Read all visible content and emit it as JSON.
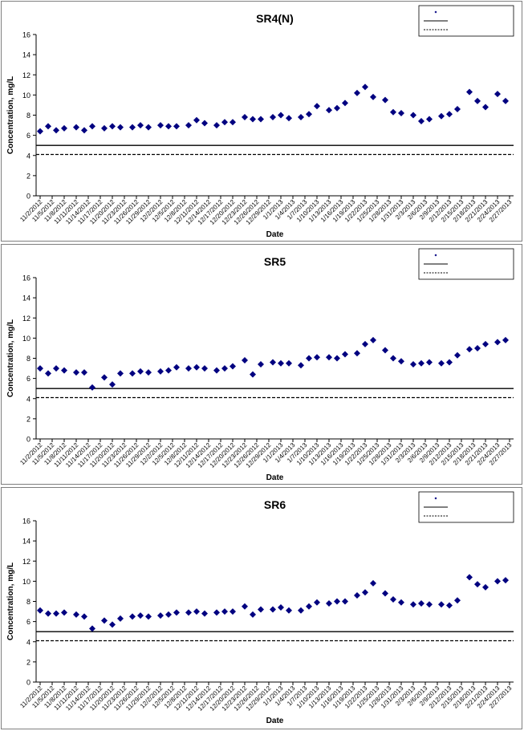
{
  "chart_data": [
    {
      "type": "scatter",
      "title": "SR4(N)",
      "xlabel": "Date",
      "ylabel": "Concentration, mg/L",
      "ylim": [
        0,
        16
      ],
      "ytick_step": 2,
      "grid": false,
      "legend_position": "top-right",
      "x_tick_labels": [
        "11/2/2012",
        "11/5/2012",
        "11/8/2012",
        "11/11/2012",
        "11/14/2012",
        "11/17/2012",
        "11/20/2012",
        "11/23/2012",
        "11/26/2012",
        "11/29/2012",
        "12/2/2012",
        "12/5/2012",
        "12/8/2012",
        "12/11/2012",
        "12/14/2012",
        "12/17/2012",
        "12/20/2012",
        "12/23/2012",
        "12/26/2012",
        "12/29/2012",
        "1/1/2013",
        "1/4/2013",
        "1/7/2013",
        "1/10/2013",
        "1/13/2013",
        "1/16/2013",
        "1/19/2013",
        "1/22/2013",
        "1/25/2013",
        "1/28/2013",
        "1/31/2013",
        "2/3/2013",
        "2/6/2013",
        "2/9/2013",
        "2/12/2013",
        "2/15/2013",
        "2/18/2013",
        "2/21/2013",
        "2/24/2013",
        "2/27/2013"
      ],
      "x": [
        "11/2/2012",
        "11/4/2012",
        "11/6/2012",
        "11/8/2012",
        "11/11/2012",
        "11/13/2012",
        "11/15/2012",
        "11/18/2012",
        "11/20/2012",
        "11/22/2012",
        "11/25/2012",
        "11/27/2012",
        "11/29/2012",
        "12/2/2012",
        "12/4/2012",
        "12/6/2012",
        "12/9/2012",
        "12/11/2012",
        "12/13/2012",
        "12/16/2012",
        "12/18/2012",
        "12/20/2012",
        "12/23/2012",
        "12/25/2012",
        "12/27/2012",
        "12/30/2012",
        "1/1/2013",
        "1/3/2013",
        "1/6/2013",
        "1/8/2013",
        "1/10/2013",
        "1/13/2013",
        "1/15/2013",
        "1/17/2013",
        "1/20/2013",
        "1/22/2013",
        "1/24/2013",
        "1/27/2013",
        "1/29/2013",
        "1/31/2013",
        "2/3/2013",
        "2/5/2013",
        "2/7/2013",
        "2/10/2013",
        "2/12/2013",
        "2/14/2013",
        "2/17/2013",
        "2/19/2013",
        "2/21/2013",
        "2/24/2013",
        "2/26/2013"
      ],
      "series": [
        {
          "name": "SR4(N)",
          "color": "#000080",
          "marker": "diamond",
          "values": [
            6.4,
            6.9,
            6.5,
            6.7,
            6.8,
            6.5,
            6.9,
            6.7,
            6.9,
            6.8,
            6.8,
            7.0,
            6.8,
            7.0,
            6.9,
            6.9,
            7.0,
            7.5,
            7.2,
            7.0,
            7.3,
            7.3,
            7.8,
            7.6,
            7.6,
            7.8,
            8.0,
            7.7,
            7.8,
            8.1,
            8.9,
            8.5,
            8.7,
            9.2,
            10.2,
            10.8,
            9.8,
            9.5,
            8.3,
            8.2,
            8.0,
            7.4,
            7.6,
            7.9,
            8.1,
            8.6,
            10.3,
            9.4,
            8.8,
            10.1,
            9.4
          ]
        },
        {
          "name": "",
          "color": "#000000",
          "line": "solid",
          "value": 5.0
        },
        {
          "name": "",
          "color": "#000000",
          "line": "dashed",
          "value": 4.1
        }
      ]
    },
    {
      "type": "scatter",
      "title": "SR5",
      "xlabel": "Date",
      "ylabel": "Concentration, mg/L",
      "ylim": [
        0,
        16
      ],
      "ytick_step": 2,
      "grid": false,
      "legend_position": "top-right",
      "x_tick_labels": [
        "11/2/2012",
        "11/5/2012",
        "11/8/2012",
        "11/11/2012",
        "11/14/2012",
        "11/17/2012",
        "11/20/2012",
        "11/23/2012",
        "11/26/2012",
        "11/29/2012",
        "12/2/2012",
        "12/5/2012",
        "12/8/2012",
        "12/11/2012",
        "12/14/2012",
        "12/17/2012",
        "12/20/2012",
        "12/23/2012",
        "12/26/2012",
        "12/29/2012",
        "1/1/2013",
        "1/4/2013",
        "1/7/2013",
        "1/10/2013",
        "1/13/2013",
        "1/16/2013",
        "1/19/2013",
        "1/22/2013",
        "1/25/2013",
        "1/28/2013",
        "1/31/2013",
        "2/3/2013",
        "2/6/2013",
        "2/9/2013",
        "2/12/2013",
        "2/15/2013",
        "2/18/2013",
        "2/21/2013",
        "2/24/2013",
        "2/27/2013"
      ],
      "x": [
        "11/2/2012",
        "11/4/2012",
        "11/6/2012",
        "11/8/2012",
        "11/11/2012",
        "11/13/2012",
        "11/15/2012",
        "11/18/2012",
        "11/20/2012",
        "11/22/2012",
        "11/25/2012",
        "11/27/2012",
        "11/29/2012",
        "12/2/2012",
        "12/4/2012",
        "12/6/2012",
        "12/9/2012",
        "12/11/2012",
        "12/13/2012",
        "12/16/2012",
        "12/18/2012",
        "12/20/2012",
        "12/23/2012",
        "12/25/2012",
        "12/27/2012",
        "12/30/2012",
        "1/1/2013",
        "1/3/2013",
        "1/6/2013",
        "1/8/2013",
        "1/10/2013",
        "1/13/2013",
        "1/15/2013",
        "1/17/2013",
        "1/20/2013",
        "1/22/2013",
        "1/24/2013",
        "1/27/2013",
        "1/29/2013",
        "1/31/2013",
        "2/3/2013",
        "2/5/2013",
        "2/7/2013",
        "2/10/2013",
        "2/12/2013",
        "2/14/2013",
        "2/17/2013",
        "2/19/2013",
        "2/21/2013",
        "2/24/2013",
        "2/26/2013"
      ],
      "series": [
        {
          "name": "SR5",
          "color": "#000080",
          "marker": "diamond",
          "values": [
            7.0,
            6.5,
            7.0,
            6.8,
            6.6,
            6.6,
            5.1,
            6.1,
            5.4,
            6.5,
            6.5,
            6.7,
            6.6,
            6.7,
            6.8,
            7.1,
            7.0,
            7.1,
            7.0,
            6.8,
            7.0,
            7.2,
            7.8,
            6.4,
            7.4,
            7.6,
            7.5,
            7.5,
            7.3,
            8.0,
            8.1,
            8.1,
            8.0,
            8.4,
            8.5,
            9.4,
            9.8,
            8.8,
            8.0,
            7.7,
            7.4,
            7.5,
            7.6,
            7.5,
            7.6,
            8.3,
            8.9,
            9.0,
            9.4,
            9.6,
            9.8
          ]
        },
        {
          "name": "",
          "color": "#000000",
          "line": "solid",
          "value": 5.0
        },
        {
          "name": "",
          "color": "#000000",
          "line": "dashed",
          "value": 4.1
        }
      ]
    },
    {
      "type": "scatter",
      "title": "SR6",
      "xlabel": "Date",
      "ylabel": "Concentration, mg/L",
      "ylim": [
        0,
        16
      ],
      "ytick_step": 2,
      "grid": false,
      "legend_position": "top-right",
      "x_tick_labels": [
        "11/2/2012",
        "11/5/2012",
        "11/8/2012",
        "11/11/2012",
        "11/14/2012",
        "11/17/2012",
        "11/20/2012",
        "11/23/2012",
        "11/26/2012",
        "11/29/2012",
        "12/2/2012",
        "12/5/2012",
        "12/8/2012",
        "12/11/2012",
        "12/14/2012",
        "12/17/2012",
        "12/20/2012",
        "12/23/2012",
        "12/26/2012",
        "12/29/2012",
        "1/1/2013",
        "1/4/2013",
        "1/7/2013",
        "1/10/2013",
        "1/13/2013",
        "1/16/2013",
        "1/19/2013",
        "1/22/2013",
        "1/25/2013",
        "1/28/2013",
        "1/31/2013",
        "2/3/2013",
        "2/6/2013",
        "2/9/2013",
        "2/12/2013",
        "2/15/2013",
        "2/18/2013",
        "2/21/2013",
        "2/24/2013",
        "2/27/2013"
      ],
      "x": [
        "11/2/2012",
        "11/4/2012",
        "11/6/2012",
        "11/8/2012",
        "11/11/2012",
        "11/13/2012",
        "11/15/2012",
        "11/18/2012",
        "11/20/2012",
        "11/22/2012",
        "11/25/2012",
        "11/27/2012",
        "11/29/2012",
        "12/2/2012",
        "12/4/2012",
        "12/6/2012",
        "12/9/2012",
        "12/11/2012",
        "12/13/2012",
        "12/16/2012",
        "12/18/2012",
        "12/20/2012",
        "12/23/2012",
        "12/25/2012",
        "12/27/2012",
        "12/30/2012",
        "1/1/2013",
        "1/3/2013",
        "1/6/2013",
        "1/8/2013",
        "1/10/2013",
        "1/13/2013",
        "1/15/2013",
        "1/17/2013",
        "1/20/2013",
        "1/22/2013",
        "1/24/2013",
        "1/27/2013",
        "1/29/2013",
        "1/31/2013",
        "2/3/2013",
        "2/5/2013",
        "2/7/2013",
        "2/10/2013",
        "2/12/2013",
        "2/14/2013",
        "2/17/2013",
        "2/19/2013",
        "2/21/2013",
        "2/24/2013",
        "2/26/2013"
      ],
      "series": [
        {
          "name": "SR6",
          "color": "#000080",
          "marker": "diamond",
          "values": [
            7.1,
            6.8,
            6.8,
            6.9,
            6.7,
            6.5,
            5.3,
            6.1,
            5.7,
            6.3,
            6.5,
            6.6,
            6.5,
            6.6,
            6.7,
            6.9,
            6.9,
            7.0,
            6.8,
            6.9,
            7.0,
            7.0,
            7.5,
            6.7,
            7.2,
            7.2,
            7.4,
            7.1,
            7.1,
            7.5,
            7.9,
            7.8,
            8.0,
            8.0,
            8.6,
            8.9,
            9.8,
            8.8,
            8.2,
            7.9,
            7.7,
            7.8,
            7.7,
            7.7,
            7.6,
            8.1,
            10.4,
            9.7,
            9.4,
            10.0,
            10.1
          ]
        },
        {
          "name": "",
          "color": "#000000",
          "line": "solid",
          "value": 5.0
        },
        {
          "name": "",
          "color": "#000000",
          "line": "dashed",
          "value": 4.1
        }
      ]
    }
  ]
}
